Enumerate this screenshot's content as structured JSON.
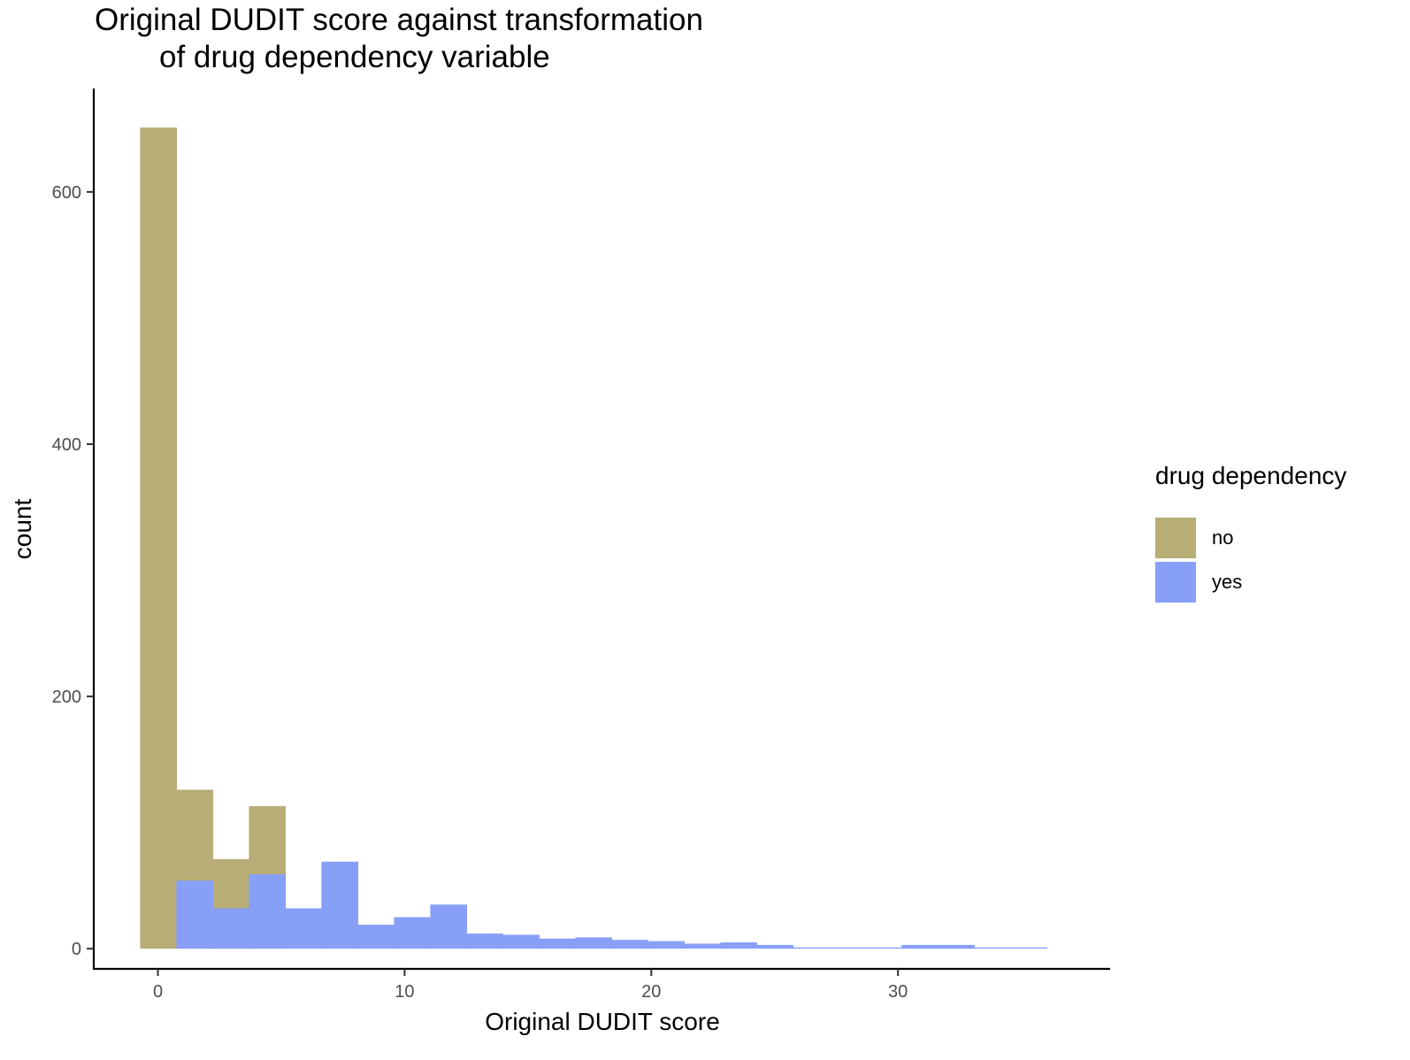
{
  "chart_data": {
    "type": "bar",
    "title_lines": [
      "Original DUDIT score against transformation",
      "of drug dependency variable"
    ],
    "xlabel": "Original DUDIT score",
    "ylabel": "count",
    "xlim": [
      -2.6,
      38.6
    ],
    "ylim": [
      -16,
      682
    ],
    "x_ticks": [
      0,
      10,
      20,
      30
    ],
    "y_ticks": [
      0,
      200,
      400,
      600
    ],
    "grid": false,
    "legend": {
      "title": "drug dependency",
      "placement": "right"
    },
    "bin_width": 1.47,
    "series": [
      {
        "name": "no",
        "color": "#b8ad76",
        "bins": [
          {
            "x0": -0.72,
            "x1": 0.75,
            "count": 651
          },
          {
            "x0": 0.75,
            "x1": 2.22,
            "count": 126
          },
          {
            "x0": 2.22,
            "x1": 3.69,
            "count": 71
          },
          {
            "x0": 3.69,
            "x1": 5.16,
            "count": 113
          }
        ]
      },
      {
        "name": "yes",
        "color": "#889ff8",
        "bins": [
          {
            "x0": 0.75,
            "x1": 2.22,
            "count": 54
          },
          {
            "x0": 2.22,
            "x1": 3.69,
            "count": 32
          },
          {
            "x0": 3.69,
            "x1": 5.16,
            "count": 59
          },
          {
            "x0": 5.16,
            "x1": 6.63,
            "count": 32
          },
          {
            "x0": 6.63,
            "x1": 8.1,
            "count": 69
          },
          {
            "x0": 8.1,
            "x1": 9.57,
            "count": 19
          },
          {
            "x0": 9.57,
            "x1": 11.04,
            "count": 25
          },
          {
            "x0": 11.04,
            "x1": 12.51,
            "count": 35
          },
          {
            "x0": 12.51,
            "x1": 13.98,
            "count": 12
          },
          {
            "x0": 13.98,
            "x1": 15.45,
            "count": 11
          },
          {
            "x0": 15.45,
            "x1": 16.92,
            "count": 8
          },
          {
            "x0": 16.92,
            "x1": 18.39,
            "count": 9
          },
          {
            "x0": 18.39,
            "x1": 19.86,
            "count": 7
          },
          {
            "x0": 19.86,
            "x1": 21.33,
            "count": 6
          },
          {
            "x0": 21.33,
            "x1": 22.8,
            "count": 4
          },
          {
            "x0": 22.8,
            "x1": 24.27,
            "count": 5
          },
          {
            "x0": 24.27,
            "x1": 25.74,
            "count": 3
          },
          {
            "x0": 25.74,
            "x1": 27.21,
            "count": 1
          },
          {
            "x0": 27.21,
            "x1": 28.68,
            "count": 1
          },
          {
            "x0": 28.68,
            "x1": 30.15,
            "count": 1
          },
          {
            "x0": 30.15,
            "x1": 31.62,
            "count": 3
          },
          {
            "x0": 31.62,
            "x1": 33.09,
            "count": 3
          },
          {
            "x0": 33.09,
            "x1": 34.56,
            "count": 1
          },
          {
            "x0": 34.56,
            "x1": 36.03,
            "count": 1
          }
        ]
      }
    ]
  }
}
